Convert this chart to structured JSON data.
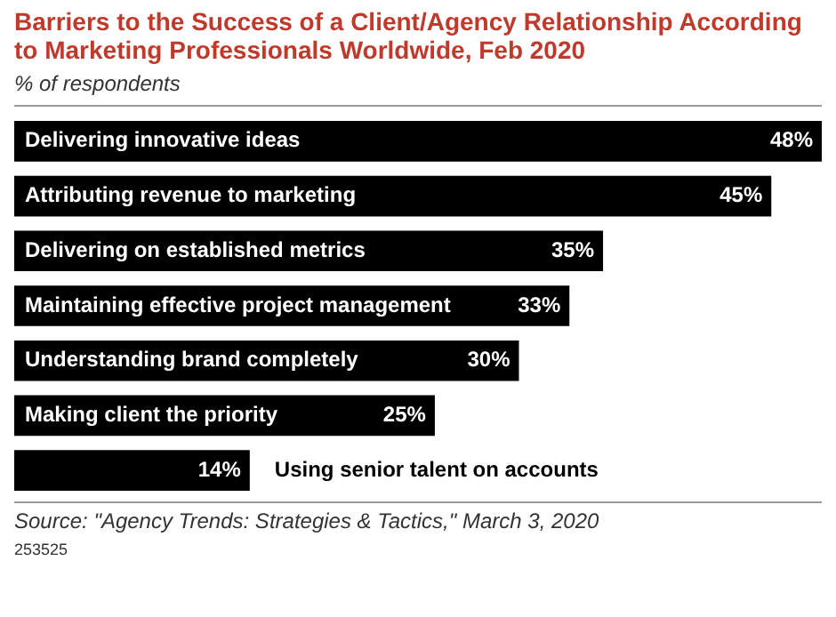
{
  "chart_data": {
    "type": "bar",
    "orientation": "horizontal",
    "title": "Barriers to the Success of a Client/Agency Relationship According to Marketing Professionals Worldwide, Feb 2020",
    "subtitle": "% of respondents",
    "categories": [
      "Delivering innovative ideas",
      "Attributing revenue to marketing",
      "Delivering on established metrics",
      "Maintaining effective project management",
      "Understanding brand completely",
      "Making client the priority",
      "Using senior talent on accounts"
    ],
    "values": [
      48,
      45,
      35,
      33,
      30,
      25,
      14
    ],
    "value_labels": [
      "48%",
      "45%",
      "35%",
      "33%",
      "30%",
      "25%",
      "14%"
    ],
    "color": "#000000",
    "legend": false,
    "annotations": [
      "Source: \"Agency Trends: Strategies & Tactics,\" March 3, 2020",
      "253525"
    ]
  }
}
